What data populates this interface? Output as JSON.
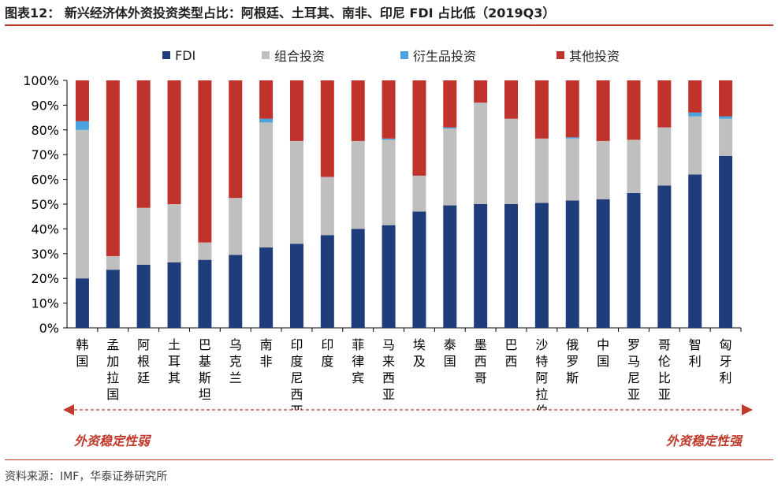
{
  "header": {
    "title": "图表12：  新兴经济体外资投资类型占比：阿根廷、土耳其、南非、印尼 FDI 占比低（2019Q3）"
  },
  "footer": {
    "source": "资料来源：IMF，华泰证券研究所"
  },
  "annotations": {
    "weak": "外资稳定性弱",
    "strong": "外资稳定性强"
  },
  "colors": {
    "fdi": "#1f3d7a",
    "portfolio": "#bfbfbf",
    "derivatives": "#4aa3df",
    "other": "#c0322c",
    "accent": "#c0392b"
  },
  "chart_data": {
    "type": "bar",
    "stacked": true,
    "percent": true,
    "categories": [
      "韩国",
      "孟加拉国",
      "阿根廷",
      "土耳其",
      "巴基斯坦",
      "乌克兰",
      "南非",
      "印度尼西亚",
      "印度",
      "菲律宾",
      "马来西亚",
      "埃及",
      "泰国",
      "墨西哥",
      "巴西",
      "沙特阿拉伯",
      "俄罗斯",
      "中国",
      "罗马尼亚",
      "哥伦比亚",
      "智利",
      "匈牙利"
    ],
    "series": [
      {
        "name": "FDI",
        "values": [
          20,
          23.5,
          25.5,
          26.5,
          27.5,
          29.5,
          32.5,
          34,
          37.5,
          40,
          41.5,
          47,
          49.5,
          50,
          50,
          50.5,
          51.5,
          52,
          54.5,
          57.5,
          62,
          69.5
        ]
      },
      {
        "name": "组合投资",
        "values": [
          60,
          5.5,
          23,
          23.5,
          7,
          23,
          50.5,
          41.5,
          23.5,
          35.5,
          34.5,
          14.5,
          31,
          41,
          34.5,
          26,
          25,
          23.5,
          21.5,
          23.5,
          23.5,
          15
        ]
      },
      {
        "name": "衍生品投资",
        "values": [
          3.5,
          0,
          0,
          0,
          0,
          0,
          1.5,
          0,
          0,
          0,
          0.5,
          0,
          0.5,
          0,
          0,
          0,
          0.5,
          0,
          0,
          0,
          1.5,
          1
        ]
      },
      {
        "name": "其他投资",
        "values": [
          16.5,
          71,
          51.5,
          50,
          65.5,
          47.5,
          15.5,
          24.5,
          39,
          24.5,
          23.5,
          38.5,
          19,
          9,
          15.5,
          23.5,
          23,
          24.5,
          24,
          19,
          13,
          14.5
        ]
      }
    ],
    "ylim": [
      0,
      100
    ],
    "yticks": [
      "0%",
      "10%",
      "20%",
      "30%",
      "40%",
      "50%",
      "60%",
      "70%",
      "80%",
      "90%",
      "100%"
    ],
    "legend_position": "top",
    "grid": false
  }
}
